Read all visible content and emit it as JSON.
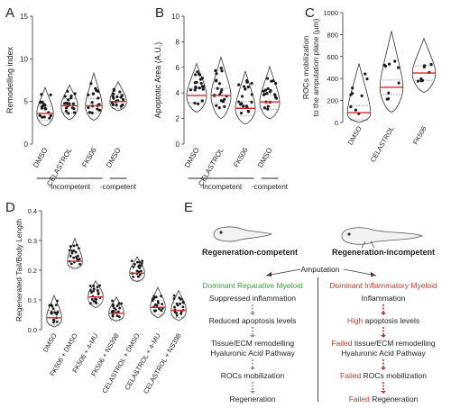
{
  "panels": {
    "A": {
      "letter": "A",
      "ylabel": "Remodelling index",
      "yticks": [
        "0",
        "5",
        "10",
        "15"
      ],
      "ylim": [
        0,
        15
      ],
      "categories": [
        "DMSO",
        "CELASTROL",
        "FK506",
        "DMSO"
      ],
      "groups": [
        {
          "label": "-incompetent",
          "span": [
            0,
            2
          ]
        },
        {
          "label": "-competent",
          "span": [
            3,
            3
          ]
        }
      ],
      "medians": [
        3.6,
        4.5,
        4.5,
        5.0
      ]
    },
    "B": {
      "letter": "B",
      "ylabel": "Apoptotic Area (A.U.)",
      "yticks": [
        "0",
        "2",
        "4",
        "6",
        "8",
        "10"
      ],
      "ylim": [
        0,
        10
      ],
      "categories": [
        "DMSO",
        "CELASTROL",
        "FK506",
        "DMSO"
      ],
      "groups": [
        {
          "label": "-incompetent",
          "span": [
            0,
            2
          ]
        },
        {
          "label": "-competent",
          "span": [
            3,
            3
          ]
        }
      ],
      "medians": [
        3.8,
        3.8,
        2.8,
        3.3
      ]
    },
    "C": {
      "letter": "C",
      "ylabel": "ROCs mobilization to the amputation plane (µm)",
      "ylabel_line1": "ROCs mobilization",
      "ylabel_line2": "to the amputation plane (µm)",
      "yticks": [
        "0",
        "200",
        "400",
        "600",
        "800",
        "1000"
      ],
      "ylim": [
        0,
        1000
      ],
      "categories": [
        "DMSO",
        "CELASTROL",
        "FK506"
      ],
      "medians": [
        90,
        320,
        450
      ]
    },
    "D": {
      "letter": "D",
      "ylabel": "Regenerated Tail/Body Length",
      "yticks": [
        "0.0",
        "0.1",
        "0.2",
        "0.3",
        "0.4"
      ],
      "ylim": [
        0,
        0.4
      ],
      "categories": [
        "DMSO",
        "FK506 + DMSO",
        "FK506 + 4-MU",
        "FK506 + NS398",
        "CELASTROL + DMSO",
        "CELASTROL + 4-MU",
        "CELASTROL + NS398"
      ],
      "medians": [
        0.04,
        0.23,
        0.11,
        0.055,
        0.19,
        0.075,
        0.065
      ]
    },
    "E": {
      "letter": "E",
      "left_title": "Regeneration-competent",
      "right_title": "Regeneration-incompetent",
      "amputation": "Amputation",
      "left_steps": [
        "Dominant Reparative Myeloid",
        "Suppressed inflammation",
        "Reduced apoptosis levels",
        "Tissue/ECM remodelling",
        "Hyaluronic Acid Pathway",
        "ROCs mobilization",
        "Regeneration"
      ],
      "right_steps": [
        {
          "hl": "Dominant Inflammatory Myeloid",
          "rest": ""
        },
        {
          "hl": "",
          "rest": "Inflammation"
        },
        {
          "hl": "High",
          "rest": " apoptosis levels"
        },
        {
          "hl": "Failed",
          "rest": " tissue/ECM remodelling"
        },
        {
          "hl": "",
          "rest": "Hyaluronic Acid Pathway"
        },
        {
          "hl": "Failed",
          "rest": " ROCs mobilization"
        },
        {
          "hl": "Failed",
          "rest": " Regeneration"
        }
      ]
    }
  },
  "colors": {
    "median": "#d62728",
    "points": "#1a1a1a",
    "violin": "#333333",
    "green": "#3aa13a",
    "red": "#c0392b",
    "arrow": "#9a8f83"
  }
}
